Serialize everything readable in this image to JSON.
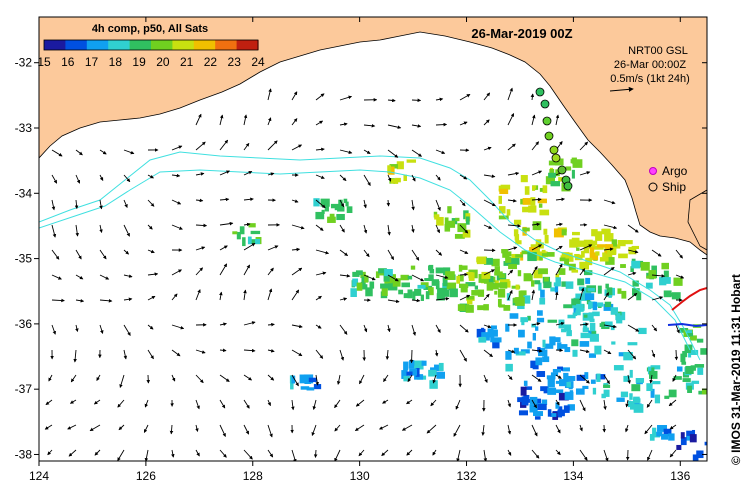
{
  "title": "26-Mar-2019 00Z",
  "colorbar": {
    "title": "4h comp, p50, All Sats",
    "ticks": [
      "15",
      "16",
      "17",
      "18",
      "19",
      "20",
      "21",
      "22",
      "23",
      "24"
    ],
    "colors": [
      "#1a1aa0",
      "#0050e0",
      "#10a0f0",
      "#30d0d0",
      "#30c060",
      "#70d020",
      "#c8e010",
      "#f0c000",
      "#f07010",
      "#c02010"
    ]
  },
  "info": {
    "line1": "NRT00 GSL",
    "line2": "26-Mar 00:00Z",
    "line3": "0.5m/s (1kt 24h)"
  },
  "legend": {
    "argo": "Argo",
    "ship": "Ship"
  },
  "axes": {
    "x_ticks": [
      "124",
      "126",
      "128",
      "130",
      "132",
      "134",
      "136"
    ],
    "y_ticks": [
      "-32",
      "-33",
      "-34",
      "-35",
      "-36",
      "-37",
      "-38"
    ],
    "lon_range": [
      124,
      136.5
    ],
    "lat_range": [
      -38.1,
      -31.3
    ]
  },
  "credit": "© IMOS 31-Mar-2019 11:31 Hobart",
  "colors": {
    "land": "#fcc99b",
    "sea": "#ffffff",
    "contour": "#40e0e0"
  }
}
